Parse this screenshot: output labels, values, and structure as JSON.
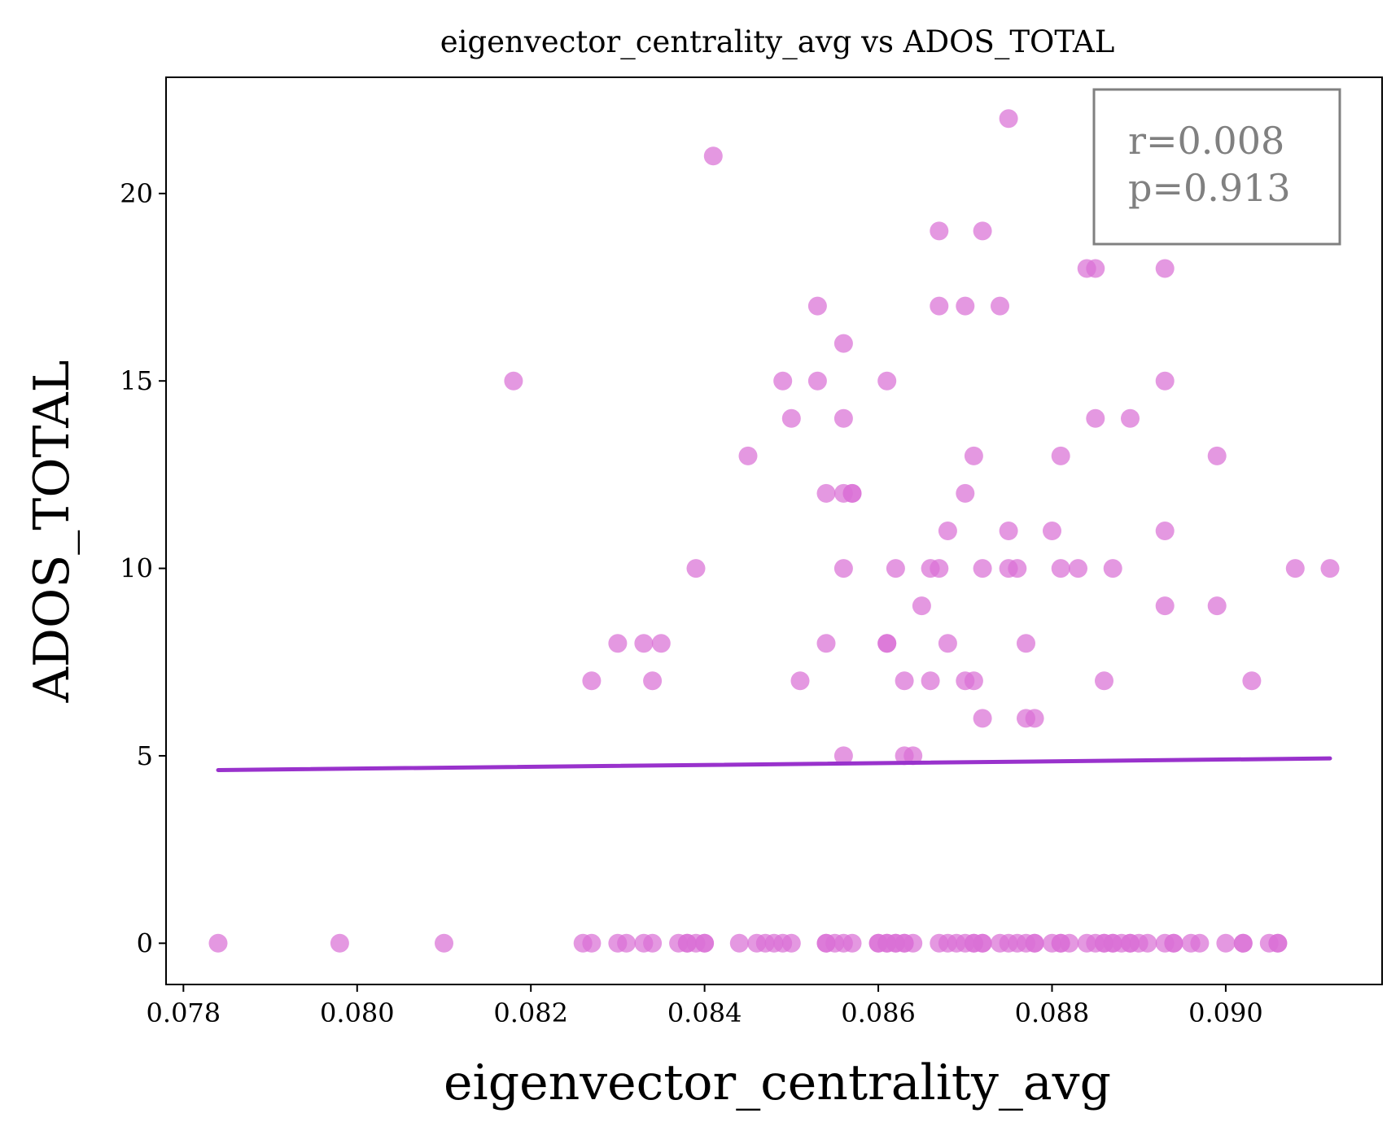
{
  "colors": {
    "point": "#DA70D6",
    "fit_line": "#9932CC",
    "axis": "#000000",
    "stats_text": "#808080",
    "stats_border": "#808080",
    "background": "#ffffff"
  },
  "chart_data": {
    "type": "scatter",
    "title": "eigenvector_centrality_avg vs ADOS_TOTAL",
    "xlabel": "eigenvector_centrality_avg",
    "ylabel": "ADOS_TOTAL",
    "xlim": [
      0.0778,
      0.0918
    ],
    "ylim": [
      -1.1,
      23.1
    ],
    "x_ticks": [
      0.078,
      0.08,
      0.082,
      0.084,
      0.086,
      0.088,
      0.09
    ],
    "x_tick_labels": [
      "0.078",
      "0.080",
      "0.082",
      "0.084",
      "0.086",
      "0.088",
      "0.090"
    ],
    "y_ticks": [
      0,
      5,
      10,
      15,
      20
    ],
    "y_tick_labels": [
      "0",
      "5",
      "10",
      "15",
      "20"
    ],
    "grid": false,
    "stats_box": {
      "r_text": "r=0.008",
      "p_text": "p=0.913",
      "placement": "top-right"
    },
    "fit_line": {
      "x": [
        0.0784,
        0.0912
      ],
      "y": [
        4.62,
        4.93
      ]
    },
    "series": [
      {
        "points": [
          [
            0.0784,
            0
          ],
          [
            0.0798,
            0
          ],
          [
            0.081,
            0
          ],
          [
            0.0818,
            15
          ],
          [
            0.0827,
            7
          ],
          [
            0.083,
            8
          ],
          [
            0.0833,
            8
          ],
          [
            0.0834,
            7
          ],
          [
            0.0835,
            8
          ],
          [
            0.0839,
            10
          ],
          [
            0.0841,
            21
          ],
          [
            0.0845,
            13
          ],
          [
            0.0849,
            15
          ],
          [
            0.085,
            14
          ],
          [
            0.0851,
            7
          ],
          [
            0.0853,
            17
          ],
          [
            0.0853,
            15
          ],
          [
            0.0854,
            8
          ],
          [
            0.0854,
            12
          ],
          [
            0.0856,
            10
          ],
          [
            0.0856,
            16
          ],
          [
            0.0856,
            14
          ],
          [
            0.0856,
            5
          ],
          [
            0.0856,
            12
          ],
          [
            0.0857,
            12
          ],
          [
            0.0857,
            12
          ],
          [
            0.0861,
            8
          ],
          [
            0.0861,
            8
          ],
          [
            0.0861,
            15
          ],
          [
            0.0862,
            10
          ],
          [
            0.0863,
            7
          ],
          [
            0.0863,
            5
          ],
          [
            0.0864,
            5
          ],
          [
            0.0865,
            9
          ],
          [
            0.0866,
            10
          ],
          [
            0.0866,
            7
          ],
          [
            0.0867,
            19
          ],
          [
            0.0867,
            17
          ],
          [
            0.0867,
            10
          ],
          [
            0.0868,
            11
          ],
          [
            0.0868,
            8
          ],
          [
            0.087,
            17
          ],
          [
            0.087,
            12
          ],
          [
            0.087,
            7
          ],
          [
            0.0871,
            13
          ],
          [
            0.0871,
            7
          ],
          [
            0.0872,
            10
          ],
          [
            0.0872,
            19
          ],
          [
            0.0872,
            6
          ],
          [
            0.0874,
            17
          ],
          [
            0.0875,
            10
          ],
          [
            0.0875,
            11
          ],
          [
            0.0875,
            22
          ],
          [
            0.0876,
            10
          ],
          [
            0.0877,
            8
          ],
          [
            0.0877,
            6
          ],
          [
            0.0878,
            6
          ],
          [
            0.088,
            11
          ],
          [
            0.0881,
            10
          ],
          [
            0.0881,
            13
          ],
          [
            0.0883,
            10
          ],
          [
            0.0884,
            18
          ],
          [
            0.0885,
            18
          ],
          [
            0.0885,
            14
          ],
          [
            0.0886,
            7
          ],
          [
            0.0887,
            10
          ],
          [
            0.0889,
            14
          ],
          [
            0.0893,
            15
          ],
          [
            0.0893,
            11
          ],
          [
            0.0893,
            18
          ],
          [
            0.0893,
            9
          ],
          [
            0.0899,
            13
          ],
          [
            0.0899,
            9
          ],
          [
            0.0903,
            7
          ],
          [
            0.0908,
            10
          ],
          [
            0.0912,
            10
          ],
          [
            0.0826,
            0
          ],
          [
            0.0827,
            0
          ],
          [
            0.083,
            0
          ],
          [
            0.0831,
            0
          ],
          [
            0.0833,
            0
          ],
          [
            0.0834,
            0
          ],
          [
            0.0837,
            0
          ],
          [
            0.0838,
            0
          ],
          [
            0.0838,
            0
          ],
          [
            0.0839,
            0
          ],
          [
            0.084,
            0
          ],
          [
            0.084,
            0
          ],
          [
            0.0844,
            0
          ],
          [
            0.0846,
            0
          ],
          [
            0.0847,
            0
          ],
          [
            0.0848,
            0
          ],
          [
            0.0849,
            0
          ],
          [
            0.085,
            0
          ],
          [
            0.0854,
            0
          ],
          [
            0.0854,
            0
          ],
          [
            0.0855,
            0
          ],
          [
            0.0856,
            0
          ],
          [
            0.0857,
            0
          ],
          [
            0.086,
            0
          ],
          [
            0.086,
            0
          ],
          [
            0.0861,
            0
          ],
          [
            0.0861,
            0
          ],
          [
            0.0862,
            0
          ],
          [
            0.0862,
            0
          ],
          [
            0.0863,
            0
          ],
          [
            0.0863,
            0
          ],
          [
            0.0864,
            0
          ],
          [
            0.0867,
            0
          ],
          [
            0.0868,
            0
          ],
          [
            0.0869,
            0
          ],
          [
            0.087,
            0
          ],
          [
            0.0871,
            0
          ],
          [
            0.0871,
            0
          ],
          [
            0.0872,
            0
          ],
          [
            0.0872,
            0
          ],
          [
            0.0874,
            0
          ],
          [
            0.0875,
            0
          ],
          [
            0.0876,
            0
          ],
          [
            0.0877,
            0
          ],
          [
            0.0878,
            0
          ],
          [
            0.0878,
            0
          ],
          [
            0.088,
            0
          ],
          [
            0.0881,
            0
          ],
          [
            0.0881,
            0
          ],
          [
            0.0882,
            0
          ],
          [
            0.0884,
            0
          ],
          [
            0.0885,
            0
          ],
          [
            0.0886,
            0
          ],
          [
            0.0886,
            0
          ],
          [
            0.0887,
            0
          ],
          [
            0.0887,
            0
          ],
          [
            0.0888,
            0
          ],
          [
            0.0889,
            0
          ],
          [
            0.0889,
            0
          ],
          [
            0.089,
            0
          ],
          [
            0.0891,
            0
          ],
          [
            0.0893,
            0
          ],
          [
            0.0894,
            0
          ],
          [
            0.0894,
            0
          ],
          [
            0.0896,
            0
          ],
          [
            0.0897,
            0
          ],
          [
            0.09,
            0
          ],
          [
            0.0902,
            0
          ],
          [
            0.0902,
            0
          ],
          [
            0.0905,
            0
          ],
          [
            0.0906,
            0
          ],
          [
            0.0906,
            0
          ]
        ]
      }
    ]
  }
}
